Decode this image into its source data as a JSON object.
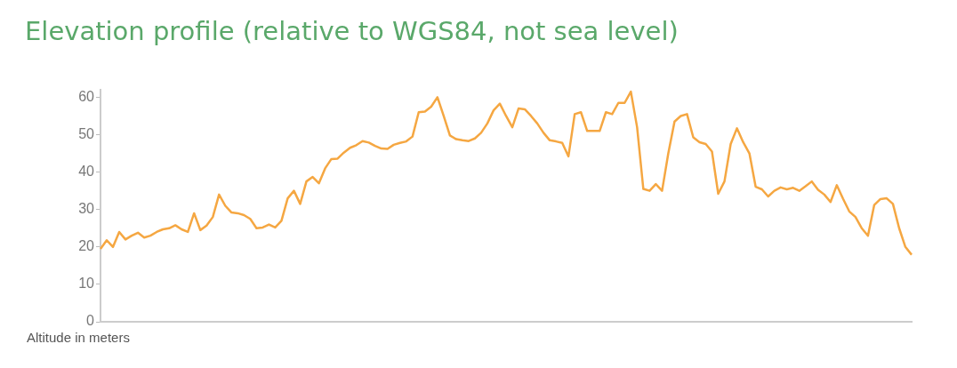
{
  "chart_data": {
    "type": "line",
    "title": "Elevation profile (relative to WGS84, not sea level)",
    "ylabel": "Altitude in meters",
    "categories": [
      null,
      null,
      null,
      null,
      null,
      null,
      null,
      null,
      null,
      null,
      null,
      null,
      null,
      null,
      null,
      null,
      null,
      null,
      null,
      null,
      null,
      null,
      null,
      null,
      null,
      null,
      null,
      null,
      null,
      null,
      null,
      null,
      null,
      null,
      null,
      null,
      null,
      null,
      null,
      null,
      null,
      null,
      null,
      null,
      null,
      null,
      null,
      null,
      null,
      null,
      null,
      null,
      null,
      null,
      null,
      null,
      null,
      null,
      null,
      null,
      null,
      null,
      null,
      null,
      null,
      null,
      null,
      null,
      null,
      null,
      null,
      null,
      null,
      null,
      null,
      null,
      null,
      null,
      null,
      null,
      null,
      null,
      null,
      null,
      null,
      null,
      null,
      null,
      null,
      null,
      null,
      null,
      null,
      null,
      null,
      null,
      null,
      null,
      null,
      null,
      null,
      null,
      null,
      null,
      null,
      null,
      null,
      null,
      null,
      null,
      null,
      null,
      null,
      null,
      null,
      null,
      null,
      null,
      null,
      null,
      null,
      null,
      null,
      null,
      null,
      null,
      null,
      null,
      null,
      null,
      null
    ],
    "series": [
      {
        "color": "#f5a742",
        "values": [
          19.5,
          21.8,
          20,
          24,
          22,
          23,
          23.8,
          22.5,
          23,
          24,
          24.7,
          25,
          25.8,
          24.7,
          24,
          29,
          24.5,
          25.7,
          28,
          34,
          31,
          29.2,
          29,
          28.5,
          27.5,
          25,
          25.2,
          26,
          25.2,
          27,
          33,
          35,
          31.5,
          37.5,
          38.7,
          37,
          41,
          43.5,
          43.6,
          45.2,
          46.5,
          47.2,
          48.3,
          47.9,
          47,
          46.3,
          46.2,
          47.3,
          47.8,
          48.2,
          49.5,
          56,
          56.2,
          57.5,
          60,
          55,
          49.8,
          48.8,
          48.5,
          48.3,
          49,
          50.5,
          53,
          56.5,
          58.3,
          55,
          52,
          57,
          56.8,
          55,
          53,
          50.5,
          48.5,
          48.2,
          47.8,
          44.2,
          55.5,
          56,
          51,
          51,
          51,
          56,
          55.5,
          58.5,
          58.5,
          61.5,
          52,
          35.5,
          35,
          36.8,
          35,
          45,
          53.5,
          55,
          55.5,
          49.3,
          48,
          47.5,
          45.5,
          34.2,
          37.5,
          47.5,
          51.7,
          48,
          45,
          36.1,
          35.4,
          33.5,
          35,
          35.9,
          35.4,
          35.8,
          35,
          36.2,
          37.5,
          35.3,
          34,
          32,
          36.5,
          32.9,
          29.5,
          28,
          25,
          23,
          31.2,
          32.8,
          33,
          31.5,
          25,
          20,
          17.9
        ]
      }
    ],
    "ylim": [
      0,
      62
    ],
    "yticks": [
      0,
      10,
      20,
      30,
      40,
      50,
      60
    ],
    "grid": false,
    "legend": false,
    "marker": "none",
    "line_style": "solid"
  }
}
